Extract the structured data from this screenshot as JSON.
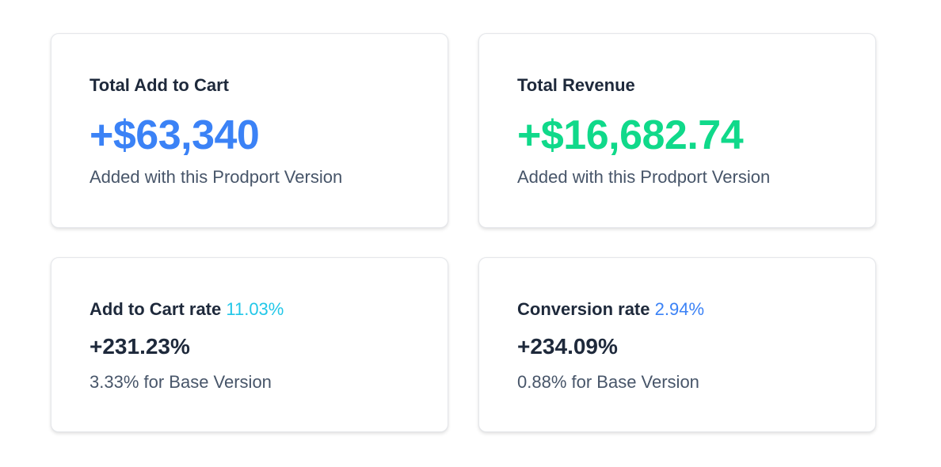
{
  "colors": {
    "blue": "#3b82f6",
    "green": "#10d98a",
    "cyan": "#22c7e8",
    "text_dark": "#1e293b",
    "text_muted": "#475569"
  },
  "cards": [
    {
      "title": "Total Add to Cart",
      "value": "+$63,340",
      "description": "Added with this Prodport Version"
    },
    {
      "title": "Total Revenue",
      "value": "+$16,682.74",
      "description": "Added with this Prodport Version"
    },
    {
      "title": "Add to Cart rate",
      "rate": "11.03%",
      "value": "+231.23%",
      "description": "3.33% for Base Version"
    },
    {
      "title": "Conversion rate",
      "rate": "2.94%",
      "value": "+234.09%",
      "description": "0.88% for Base Version"
    }
  ]
}
